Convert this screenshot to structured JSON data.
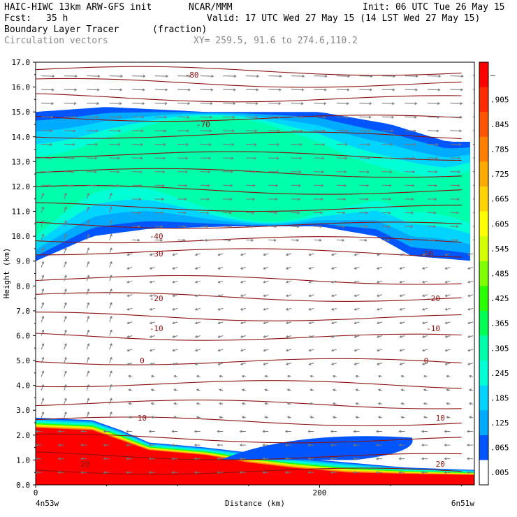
{
  "header": {
    "model": "HAIC-HIWC 13km ARW-GFS init",
    "org": "NCAR/MMM",
    "init": "Init: 06 UTC Tue 26 May 15",
    "fcst_label": "Fcst:",
    "fcst_value": "35 h",
    "valid": "Valid: 17 UTC Wed 27 May 15 (14 LST Wed 27 May 15)",
    "field": "Boundary Layer Tracer",
    "units": "(fraction)",
    "vectors": "Circulation vectors",
    "xy": "XY= 259.5, 91.6 to 274.6,110.2"
  },
  "chart_data": {
    "type": "heatmap",
    "ylabel": "Height (km)",
    "xlabel": "Distance (km)",
    "xlim": [
      0,
      309
    ],
    "ylim": [
      0,
      17
    ],
    "x_ticks": [
      {
        "value": 0,
        "label": "0"
      },
      {
        "value": 200,
        "label": "200"
      }
    ],
    "x_end_labels": {
      "left": "4n53w",
      "right": "6n51w"
    },
    "y_ticks": [
      "0.0",
      "1.0",
      "2.0",
      "3.0",
      "4.0",
      "5.0",
      "6.0",
      "7.0",
      "8.0",
      "9.0",
      "10.0",
      "11.0",
      "12.0",
      "13.0",
      "14.0",
      "15.0",
      "16.0",
      "17.0"
    ],
    "colorbar": {
      "labels": [
        "–",
        ".905",
        ".845",
        ".785",
        ".725",
        ".665",
        ".605",
        ".545",
        ".485",
        ".425",
        ".365",
        ".305",
        ".245",
        ".185",
        ".125",
        ".065",
        ".005"
      ],
      "colors": [
        "#ff0000",
        "#ff2a00",
        "#ff5500",
        "#ff8000",
        "#ffaa00",
        "#ffd400",
        "#ffff00",
        "#d4ff00",
        "#80ff00",
        "#2aff00",
        "#00ff55",
        "#00ffaa",
        "#00ffd4",
        "#00d4ff",
        "#00aaff",
        "#0055ff",
        "#ffffff"
      ]
    },
    "isotherm_labels": [
      {
        "x": 110,
        "y": 16.5,
        "text": "-80"
      },
      {
        "x": 118,
        "y": 14.5,
        "text": "-70"
      },
      {
        "x": 85,
        "y": 10.0,
        "text": "-40"
      },
      {
        "x": 85,
        "y": 9.3,
        "text": "-30"
      },
      {
        "x": 275,
        "y": 9.3,
        "text": "-30"
      },
      {
        "x": 85,
        "y": 7.5,
        "text": "-20"
      },
      {
        "x": 280,
        "y": 7.5,
        "text": "-20"
      },
      {
        "x": 85,
        "y": 6.3,
        "text": "-10"
      },
      {
        "x": 280,
        "y": 6.3,
        "text": "-10"
      },
      {
        "x": 75,
        "y": 5.0,
        "text": "0"
      },
      {
        "x": 275,
        "y": 5.0,
        "text": "0"
      },
      {
        "x": 75,
        "y": 2.7,
        "text": "10"
      },
      {
        "x": 285,
        "y": 2.7,
        "text": "10"
      },
      {
        "x": 35,
        "y": 0.85,
        "text": "20"
      },
      {
        "x": 285,
        "y": 0.85,
        "text": "20"
      }
    ],
    "upper_layer": {
      "description_levels": [
        "0.005",
        "0.065",
        "0.125",
        "0.185",
        "0.245"
      ],
      "outer_bottom": [
        [
          0,
          9.0
        ],
        [
          40,
          10.0
        ],
        [
          80,
          10.3
        ],
        [
          140,
          10.4
        ],
        [
          200,
          10.4
        ],
        [
          240,
          10.0
        ],
        [
          265,
          9.2
        ],
        [
          309,
          9.0
        ]
      ],
      "outer_top": [
        [
          0,
          15.0
        ],
        [
          50,
          15.2
        ],
        [
          120,
          15.0
        ],
        [
          200,
          15.0
        ],
        [
          250,
          14.5
        ],
        [
          290,
          13.8
        ],
        [
          309,
          13.8
        ]
      ]
    },
    "boundary_layer": {
      "top_km": [
        [
          0,
          2.7
        ],
        [
          40,
          2.6
        ],
        [
          60,
          2.2
        ],
        [
          80,
          1.7
        ],
        [
          120,
          1.5
        ],
        [
          150,
          1.3
        ],
        [
          180,
          1.1
        ],
        [
          220,
          0.9
        ],
        [
          260,
          0.7
        ],
        [
          309,
          0.6
        ]
      ],
      "red_top_km": [
        [
          0,
          2.3
        ],
        [
          40,
          2.2
        ],
        [
          60,
          1.8
        ],
        [
          80,
          1.4
        ],
        [
          120,
          1.2
        ],
        [
          150,
          0.9
        ],
        [
          180,
          0.7
        ],
        [
          220,
          0.5
        ],
        [
          260,
          0.45
        ],
        [
          309,
          0.4
        ]
      ]
    }
  }
}
